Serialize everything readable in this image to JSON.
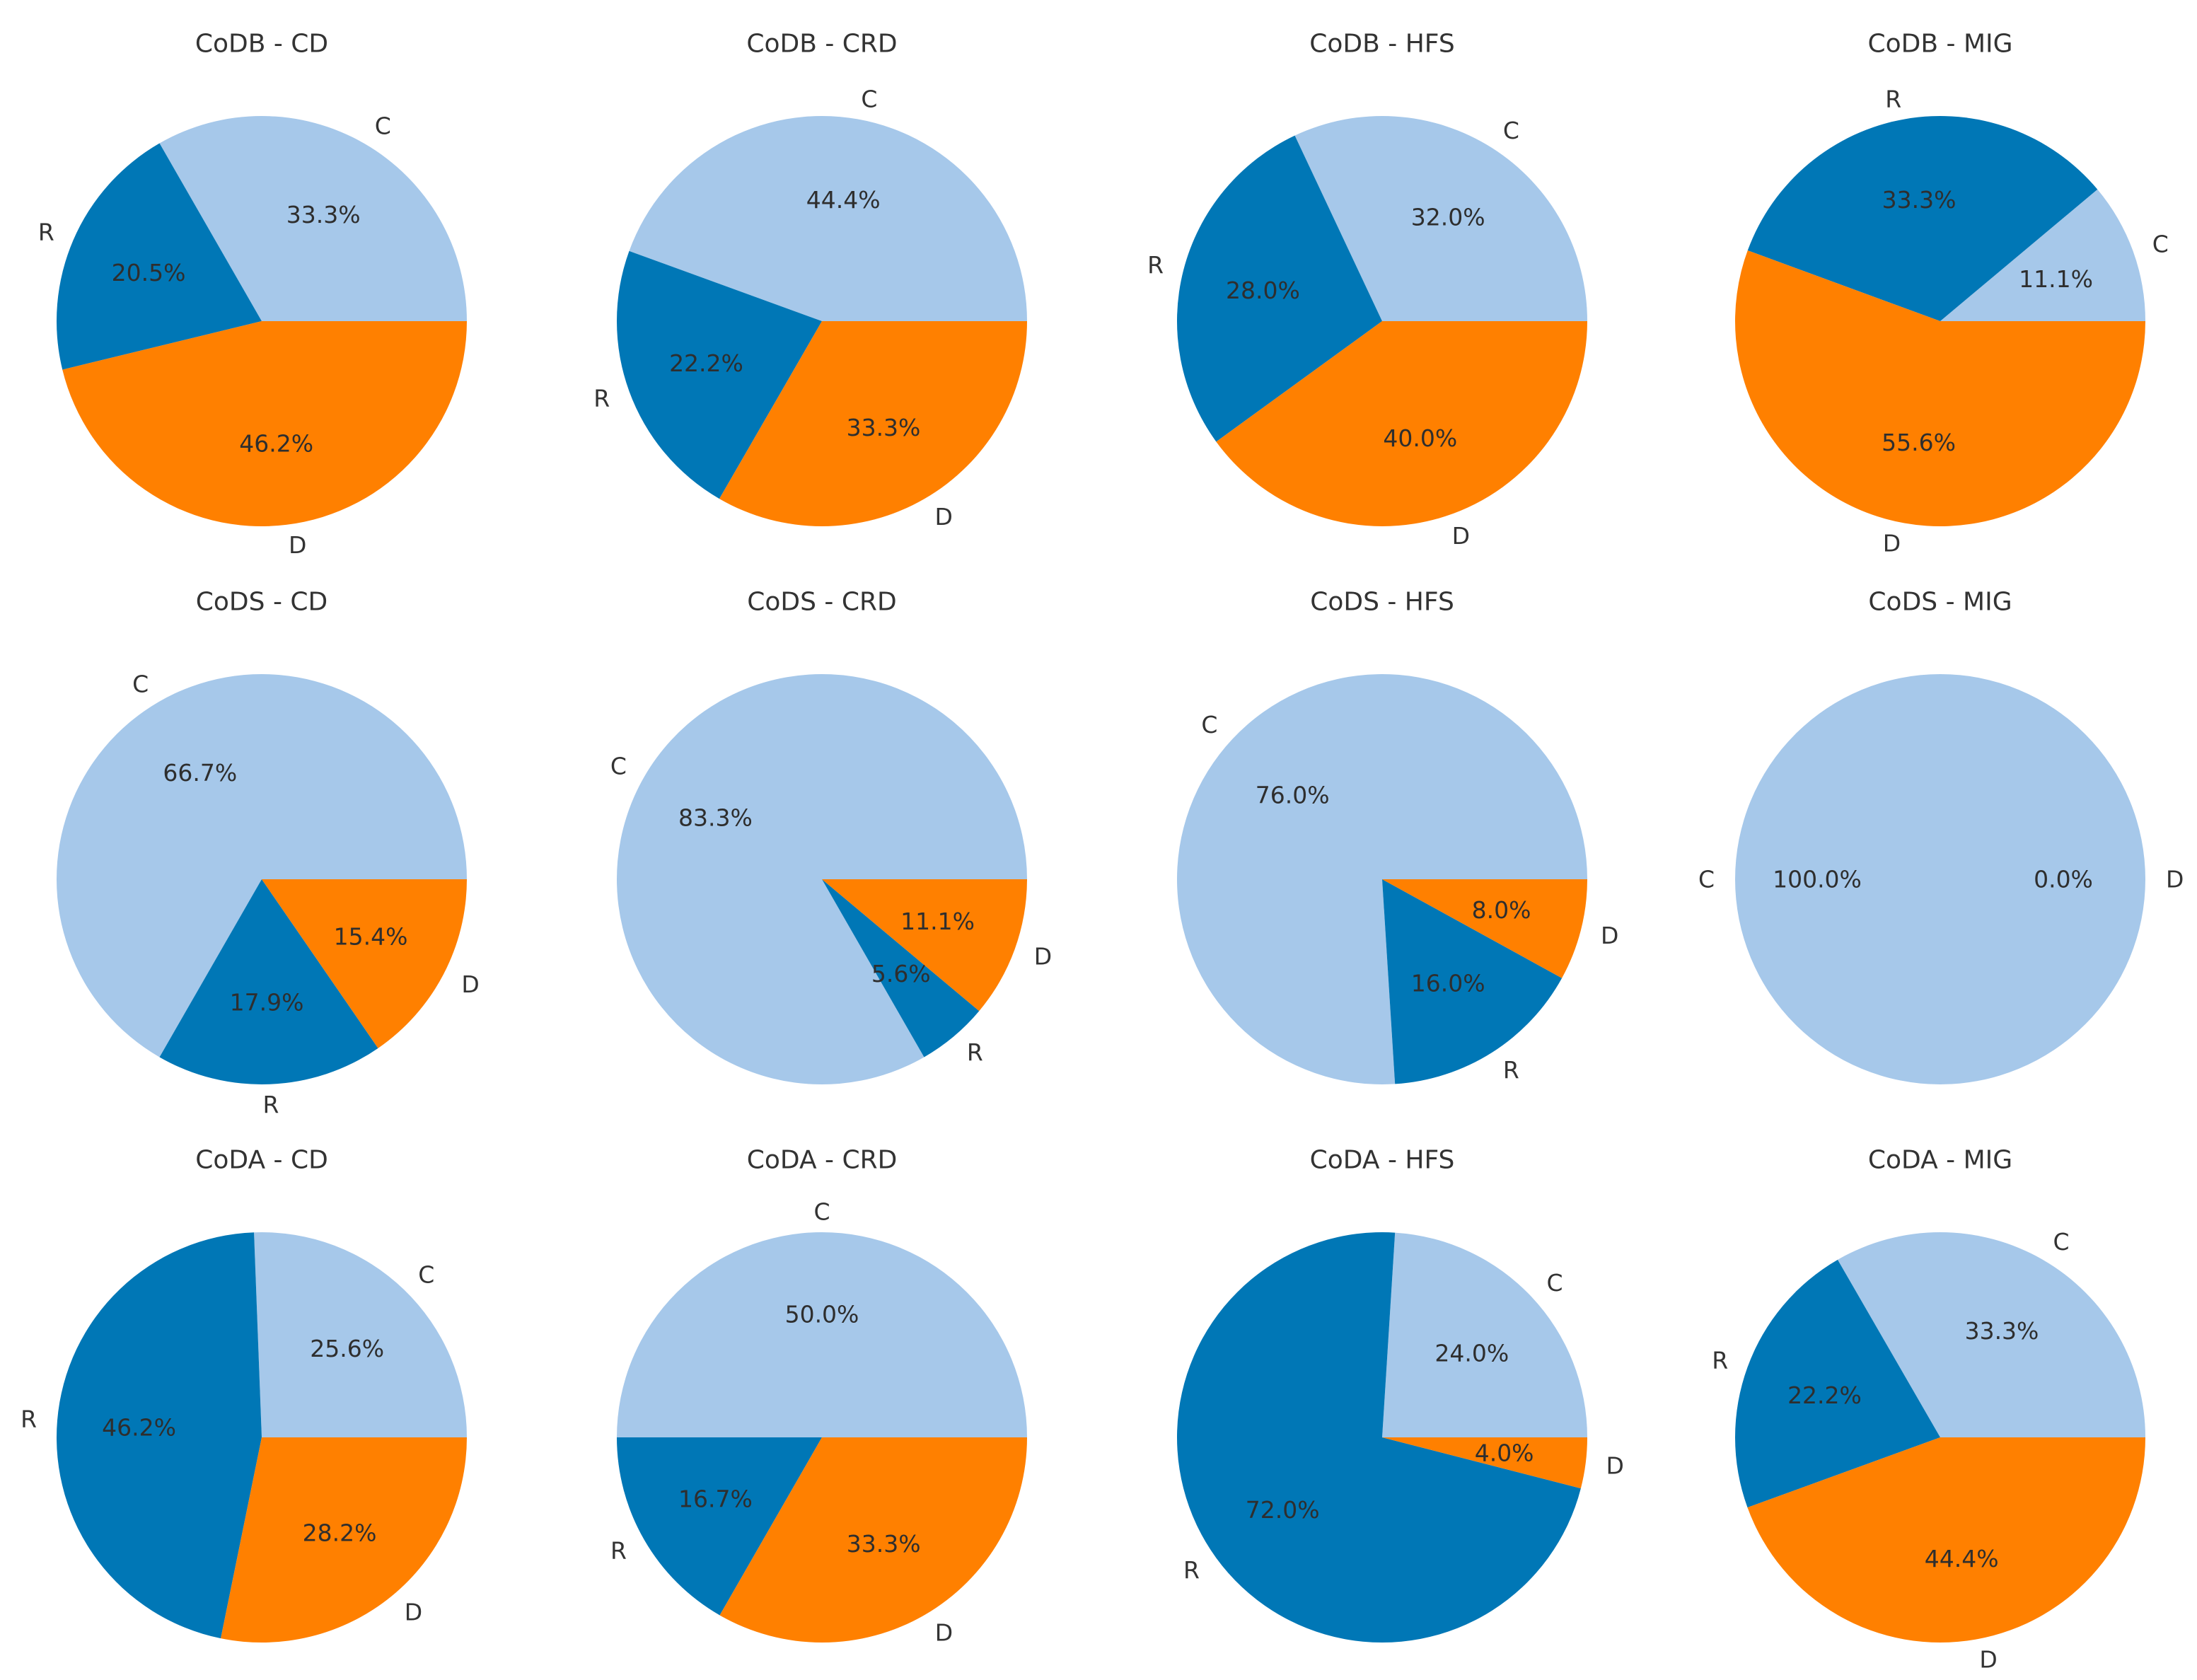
{
  "colors": {
    "C": "#a6c8ea",
    "R": "#0077b6",
    "D": "#ff8000"
  },
  "chart_data": [
    {
      "type": "pie",
      "title": "CoDB - CD",
      "labels": [
        "C",
        "R",
        "D"
      ],
      "values": [
        33.3,
        20.5,
        46.2
      ],
      "value_labels": [
        "33.3%",
        "20.5%",
        "46.2%"
      ]
    },
    {
      "type": "pie",
      "title": "CoDB - CRD",
      "labels": [
        "C",
        "R",
        "D"
      ],
      "values": [
        44.4,
        22.2,
        33.3
      ],
      "value_labels": [
        "44.4%",
        "22.2%",
        "33.3%"
      ]
    },
    {
      "type": "pie",
      "title": "CoDB - HFS",
      "labels": [
        "C",
        "R",
        "D"
      ],
      "values": [
        32.0,
        28.0,
        40.0
      ],
      "value_labels": [
        "32.0%",
        "28.0%",
        "40.0%"
      ]
    },
    {
      "type": "pie",
      "title": "CoDB - MIG",
      "labels": [
        "C",
        "R",
        "D"
      ],
      "values": [
        11.1,
        33.3,
        55.6
      ],
      "value_labels": [
        "11.1%",
        "33.3%",
        "55.6%"
      ]
    },
    {
      "type": "pie",
      "title": "CoDS - CD",
      "labels": [
        "C",
        "R",
        "D"
      ],
      "values": [
        66.7,
        17.9,
        15.4
      ],
      "value_labels": [
        "66.7%",
        "17.9%",
        "15.4%"
      ]
    },
    {
      "type": "pie",
      "title": "CoDS - CRD",
      "labels": [
        "C",
        "R",
        "D"
      ],
      "values": [
        83.3,
        5.6,
        11.1
      ],
      "value_labels": [
        "83.3%",
        "5.6%",
        "11.1%"
      ]
    },
    {
      "type": "pie",
      "title": "CoDS - HFS",
      "labels": [
        "C",
        "R",
        "D"
      ],
      "values": [
        76.0,
        16.0,
        8.0
      ],
      "value_labels": [
        "76.0%",
        "16.0%",
        "8.0%"
      ]
    },
    {
      "type": "pie",
      "title": "CoDS - MIG",
      "labels": [
        "C",
        "D"
      ],
      "values": [
        100.0,
        0.0
      ],
      "value_labels": [
        "100.0%",
        "0.0%"
      ]
    },
    {
      "type": "pie",
      "title": "CoDA - CD",
      "labels": [
        "C",
        "R",
        "D"
      ],
      "values": [
        25.6,
        46.2,
        28.2
      ],
      "value_labels": [
        "25.6%",
        "46.2%",
        "28.2%"
      ]
    },
    {
      "type": "pie",
      "title": "CoDA - CRD",
      "labels": [
        "C",
        "R",
        "D"
      ],
      "values": [
        50.0,
        16.7,
        33.3
      ],
      "value_labels": [
        "50.0%",
        "16.7%",
        "33.3%"
      ]
    },
    {
      "type": "pie",
      "title": "CoDA - HFS",
      "labels": [
        "C",
        "R",
        "D"
      ],
      "values": [
        24.0,
        72.0,
        4.0
      ],
      "value_labels": [
        "24.0%",
        "72.0%",
        "4.0%"
      ]
    },
    {
      "type": "pie",
      "title": "CoDA - MIG",
      "labels": [
        "C",
        "R",
        "D"
      ],
      "values": [
        33.3,
        22.2,
        44.4
      ],
      "value_labels": [
        "33.3%",
        "22.2%",
        "44.4%"
      ]
    }
  ]
}
